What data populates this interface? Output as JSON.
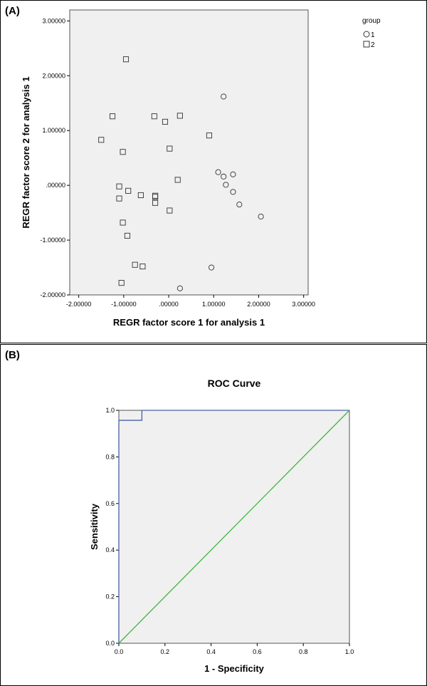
{
  "panel_labels": {
    "a": "(A)",
    "b": "(B)"
  },
  "chart_data": [
    {
      "type": "scatter",
      "title": "",
      "xlabel": "REGR factor score   1 for analysis 1",
      "ylabel": "REGR factor score   2 for analysis 1",
      "xlim": [
        -2.2,
        3.1
      ],
      "ylim": [
        -2.0,
        3.2
      ],
      "xticks": [
        -2,
        -1,
        0,
        1,
        2,
        3
      ],
      "xtick_labels": [
        "-2.00000",
        "-1.00000",
        ".00000",
        "1.00000",
        "2.00000",
        "3.00000"
      ],
      "yticks": [
        -2,
        -1,
        0,
        1,
        2,
        3
      ],
      "ytick_labels": [
        "-2.00000",
        "-1.00000",
        ".00000",
        "1.00000",
        "2.00000",
        "3.00000"
      ],
      "legend": {
        "title": "group",
        "position": "top-right outside",
        "entries": [
          {
            "label": "1",
            "marker": "circle"
          },
          {
            "label": "2",
            "marker": "square"
          }
        ]
      },
      "grid": false,
      "series": [
        {
          "name": "1",
          "marker": "circle",
          "points": [
            [
              1.22,
              1.62
            ],
            [
              1.1,
              0.24
            ],
            [
              1.22,
              0.16
            ],
            [
              1.43,
              0.2
            ],
            [
              1.27,
              0.01
            ],
            [
              1.43,
              -0.12
            ],
            [
              1.57,
              -0.35
            ],
            [
              2.05,
              -0.57
            ],
            [
              0.95,
              -1.5
            ],
            [
              0.25,
              -1.88
            ]
          ]
        },
        {
          "name": "2",
          "marker": "square",
          "points": [
            [
              -0.95,
              2.3
            ],
            [
              -1.25,
              1.26
            ],
            [
              -0.32,
              1.26
            ],
            [
              0.25,
              1.27
            ],
            [
              -0.08,
              1.16
            ],
            [
              -1.5,
              0.83
            ],
            [
              0.9,
              0.91
            ],
            [
              -1.02,
              0.61
            ],
            [
              0.02,
              0.67
            ],
            [
              0.2,
              0.1
            ],
            [
              -1.1,
              -0.02
            ],
            [
              -0.9,
              -0.1
            ],
            [
              -0.62,
              -0.18
            ],
            [
              -0.3,
              -0.19
            ],
            [
              -0.3,
              -0.21
            ],
            [
              -1.1,
              -0.24
            ],
            [
              -0.3,
              -0.32
            ],
            [
              0.02,
              -0.46
            ],
            [
              -1.02,
              -0.68
            ],
            [
              -0.92,
              -0.92
            ],
            [
              -0.75,
              -1.45
            ],
            [
              -0.58,
              -1.48
            ],
            [
              -1.05,
              -1.78
            ]
          ]
        }
      ]
    },
    {
      "type": "line",
      "title": "ROC Curve",
      "xlabel": "1 - Specificity",
      "ylabel": "Sensitivity",
      "xlim": [
        0,
        1
      ],
      "ylim": [
        0,
        1
      ],
      "xticks": [
        0,
        0.2,
        0.4,
        0.6,
        0.8,
        1.0
      ],
      "xtick_labels": [
        "0.0",
        "0.2",
        "0.4",
        "0.6",
        "0.8",
        "1.0"
      ],
      "yticks": [
        0,
        0.2,
        0.4,
        0.6,
        0.8,
        1.0
      ],
      "ytick_labels": [
        "0.0",
        "0.2",
        "0.4",
        "0.6",
        "0.8",
        "1.0"
      ],
      "grid": false,
      "series": [
        {
          "color": "#4a5fa8",
          "points": [
            [
              0,
              0
            ],
            [
              0,
              0.957
            ],
            [
              0.1,
              0.957
            ],
            [
              0.1,
              1.0
            ],
            [
              1.0,
              1.0
            ]
          ]
        },
        {
          "color": "#3cb83c",
          "points": [
            [
              0,
              0
            ],
            [
              1.0,
              1.0
            ]
          ]
        }
      ]
    }
  ],
  "colors": {
    "plot_background": "#f0f0f0",
    "frame": "#555555",
    "marker_stroke": "#333333"
  }
}
